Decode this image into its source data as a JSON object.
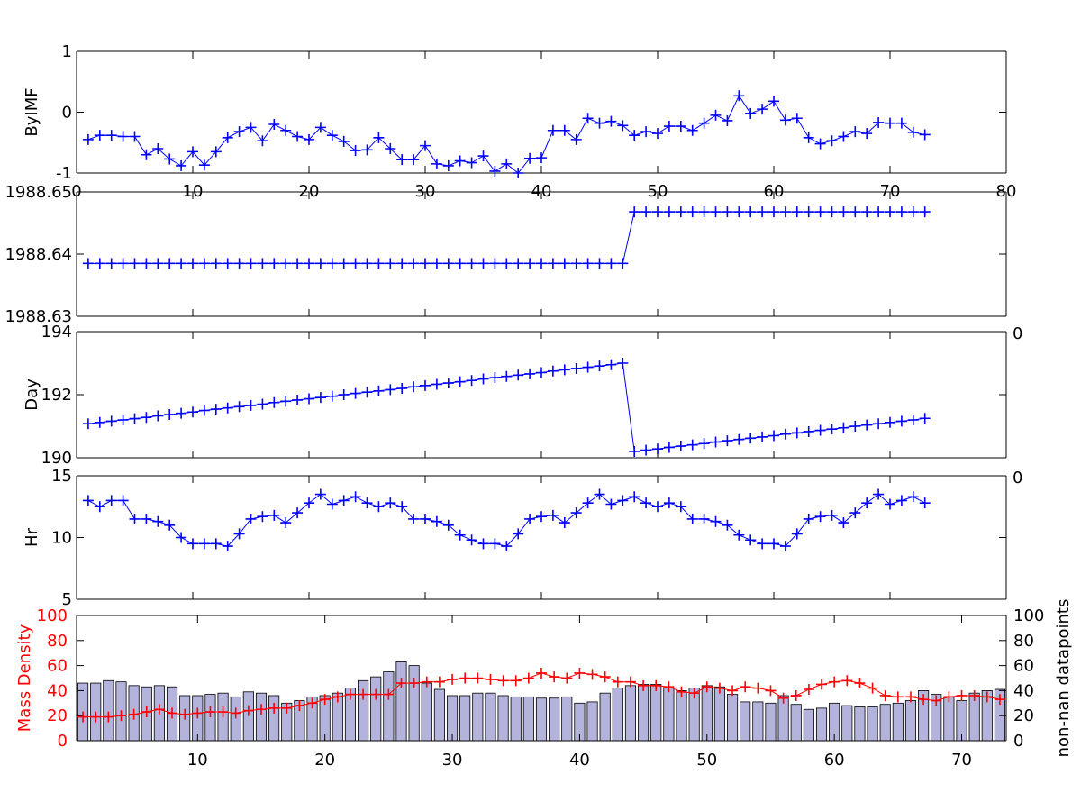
{
  "chart_data": [
    {
      "type": "line",
      "ylabel": "ByIMF",
      "xlim": [
        0,
        80
      ],
      "ylim": [
        -1,
        1
      ],
      "xticks": [
        "0",
        "10",
        "20",
        "30",
        "40",
        "50",
        "60",
        "70",
        "80"
      ],
      "yticks": [
        "-1",
        "0",
        "1"
      ],
      "series": [
        {
          "color": "#0000ff",
          "x": [
            1,
            2,
            3,
            4,
            5,
            6,
            7,
            8,
            9,
            10,
            11,
            12,
            13,
            14,
            15,
            16,
            17,
            18,
            19,
            20,
            21,
            22,
            23,
            24,
            25,
            26,
            27,
            28,
            29,
            30,
            31,
            32,
            33,
            34,
            35,
            36,
            37,
            38,
            39,
            40,
            41,
            42,
            43,
            44,
            45,
            46,
            47,
            48,
            49,
            50,
            51,
            52,
            53,
            54,
            55,
            56,
            57,
            58,
            59,
            60,
            61,
            62,
            63,
            64,
            65,
            66,
            67,
            68,
            69,
            70,
            71,
            72,
            73
          ],
          "values": [
            -0.45,
            -0.38,
            -0.38,
            -0.4,
            -0.4,
            -0.7,
            -0.6,
            -0.77,
            -0.88,
            -0.65,
            -0.87,
            -0.65,
            -0.42,
            -0.32,
            -0.25,
            -0.47,
            -0.2,
            -0.3,
            -0.4,
            -0.45,
            -0.25,
            -0.38,
            -0.48,
            -0.63,
            -0.62,
            -0.42,
            -0.6,
            -0.78,
            -0.78,
            -0.55,
            -0.85,
            -0.88,
            -0.8,
            -0.83,
            -0.72,
            -0.97,
            -0.85,
            -1.0,
            -0.76,
            -0.75,
            -0.3,
            -0.3,
            -0.45,
            -0.1,
            -0.18,
            -0.15,
            -0.22,
            -0.38,
            -0.32,
            -0.35,
            -0.23,
            -0.23,
            -0.3,
            -0.18,
            -0.05,
            -0.14,
            0.27,
            -0.02,
            0.05,
            0.18,
            -0.13,
            -0.1,
            -0.42,
            -0.52,
            -0.47,
            -0.4,
            -0.32,
            -0.35,
            -0.17,
            -0.18,
            -0.18,
            -0.33,
            -0.37
          ]
        }
      ]
    },
    {
      "type": "line",
      "ylabel": "",
      "xlim": [
        0,
        80
      ],
      "ylim": [
        1988.63,
        1988.65
      ],
      "yticks": [
        "1988.63",
        "1988.64",
        "1988.65"
      ],
      "series": [
        {
          "color": "#0000ff",
          "x": [
            1,
            2,
            3,
            4,
            5,
            6,
            7,
            8,
            9,
            10,
            11,
            12,
            13,
            14,
            15,
            16,
            17,
            18,
            19,
            20,
            21,
            22,
            23,
            24,
            25,
            26,
            27,
            28,
            29,
            30,
            31,
            32,
            33,
            34,
            35,
            36,
            37,
            38,
            39,
            40,
            41,
            42,
            43,
            44,
            45,
            46,
            47,
            48,
            49,
            50,
            51,
            52,
            53,
            54,
            55,
            56,
            57,
            58,
            59,
            60,
            61,
            62,
            63,
            64,
            65,
            66,
            67,
            68,
            69,
            70,
            71,
            72,
            73
          ],
          "values": [
            1988.6385,
            1988.6385,
            1988.6385,
            1988.6385,
            1988.6385,
            1988.6385,
            1988.6385,
            1988.6385,
            1988.6385,
            1988.6385,
            1988.6385,
            1988.6385,
            1988.6385,
            1988.6385,
            1988.6385,
            1988.6385,
            1988.6385,
            1988.6385,
            1988.6385,
            1988.6385,
            1988.6385,
            1988.6385,
            1988.6385,
            1988.6385,
            1988.6385,
            1988.6385,
            1988.6385,
            1988.6385,
            1988.6385,
            1988.6385,
            1988.6385,
            1988.6385,
            1988.6385,
            1988.6385,
            1988.6385,
            1988.6385,
            1988.6385,
            1988.6385,
            1988.6385,
            1988.6385,
            1988.6385,
            1988.6385,
            1988.6385,
            1988.6385,
            1988.6385,
            1988.6385,
            1988.6385,
            1988.6468,
            1988.6468,
            1988.6468,
            1988.6468,
            1988.6468,
            1988.6468,
            1988.6468,
            1988.6468,
            1988.6468,
            1988.6468,
            1988.6468,
            1988.6468,
            1988.6468,
            1988.6468,
            1988.6468,
            1988.6468,
            1988.6468,
            1988.6468,
            1988.6468,
            1988.6468,
            1988.6468,
            1988.6468,
            1988.6468,
            1988.6468,
            1988.6468,
            1988.6468
          ]
        }
      ]
    },
    {
      "type": "line",
      "ylabel": "Day",
      "xlim": [
        0,
        80
      ],
      "ylim": [
        190,
        194
      ],
      "yticks": [
        "190",
        "192",
        "194"
      ],
      "right_tick": "0",
      "series": [
        {
          "color": "#0000ff",
          "x": [
            1,
            2,
            3,
            4,
            5,
            6,
            7,
            8,
            9,
            10,
            11,
            12,
            13,
            14,
            15,
            16,
            17,
            18,
            19,
            20,
            21,
            22,
            23,
            24,
            25,
            26,
            27,
            28,
            29,
            30,
            31,
            32,
            33,
            34,
            35,
            36,
            37,
            38,
            39,
            40,
            41,
            42,
            43,
            44,
            45,
            46,
            47,
            48,
            49,
            50,
            51,
            52,
            53,
            54,
            55,
            56,
            57,
            58,
            59,
            60,
            61,
            62,
            63,
            64,
            65,
            66,
            67,
            68,
            69,
            70,
            71,
            72,
            73
          ],
          "values": [
            191.08,
            191.12,
            191.16,
            191.2,
            191.24,
            191.28,
            191.33,
            191.37,
            191.41,
            191.45,
            191.5,
            191.54,
            191.58,
            191.62,
            191.66,
            191.7,
            191.75,
            191.79,
            191.83,
            191.87,
            191.91,
            191.95,
            192.0,
            192.04,
            192.08,
            192.12,
            192.16,
            192.2,
            192.25,
            192.29,
            192.33,
            192.37,
            192.41,
            192.45,
            192.5,
            192.54,
            192.58,
            192.62,
            192.66,
            192.7,
            192.75,
            192.79,
            192.83,
            192.87,
            192.91,
            192.95,
            193.0,
            190.2,
            190.24,
            190.28,
            190.33,
            190.37,
            190.41,
            190.45,
            190.5,
            190.54,
            190.58,
            190.62,
            190.66,
            190.7,
            190.75,
            190.79,
            190.83,
            190.87,
            190.91,
            190.95,
            191.0,
            191.04,
            191.08,
            191.12,
            191.16,
            191.2,
            191.25
          ]
        }
      ]
    },
    {
      "type": "line",
      "ylabel": "Hr",
      "xlim": [
        0,
        80
      ],
      "ylim": [
        5,
        15
      ],
      "yticks": [
        "5",
        "10",
        "15"
      ],
      "right_tick": "0",
      "series": [
        {
          "color": "#0000ff",
          "x": [
            1,
            2,
            3,
            4,
            5,
            6,
            7,
            8,
            9,
            10,
            11,
            12,
            13,
            14,
            15,
            16,
            17,
            18,
            19,
            20,
            21,
            22,
            23,
            24,
            25,
            26,
            27,
            28,
            29,
            30,
            31,
            32,
            33,
            34,
            35,
            36,
            37,
            38,
            39,
            40,
            41,
            42,
            43,
            44,
            45,
            46,
            47,
            48,
            49,
            50,
            51,
            52,
            53,
            54,
            55,
            56,
            57,
            58,
            59,
            60,
            61,
            62,
            63,
            64,
            65,
            66,
            67,
            68,
            69,
            70,
            71,
            72,
            73
          ],
          "values": [
            13,
            12.5,
            13,
            13,
            11.5,
            11.5,
            11.3,
            11,
            10,
            9.5,
            9.5,
            9.5,
            9.3,
            10.3,
            11.5,
            11.7,
            11.8,
            11.2,
            12,
            12.8,
            13.5,
            12.7,
            13,
            13.3,
            12.8,
            12.5,
            12.8,
            12.5,
            11.5,
            11.5,
            11.3,
            11,
            10.2,
            9.8,
            9.5,
            9.5,
            9.3,
            10.3,
            11.5,
            11.7,
            11.8,
            11.2,
            12,
            12.8,
            13.5,
            12.7,
            13,
            13.3,
            12.8,
            12.5,
            12.8,
            12.5,
            11.5,
            11.5,
            11.3,
            11,
            10.2,
            9.8,
            9.5,
            9.5,
            9.3,
            10.3,
            11.5,
            11.7,
            11.8,
            11.2,
            12,
            12.8,
            13.5,
            12.7,
            13,
            13.3,
            12.8
          ]
        }
      ]
    },
    {
      "type": "bar",
      "ylabel": "Mass Density",
      "y2label": "non-nan datapoints",
      "xlim": [
        1,
        73
      ],
      "ylim": [
        0,
        100
      ],
      "xticks": [
        "10",
        "20",
        "30",
        "40",
        "50",
        "60",
        "70"
      ],
      "yticks": [
        "0",
        "20",
        "40",
        "60",
        "80",
        "100"
      ],
      "colors": {
        "line": "#ff0000",
        "bar_fill": "#b3b3dc",
        "bar_edge": "#000000"
      },
      "bars": {
        "name": "non-nan datapoints",
        "x": [
          1,
          2,
          3,
          4,
          5,
          6,
          7,
          8,
          9,
          10,
          11,
          12,
          13,
          14,
          15,
          16,
          17,
          18,
          19,
          20,
          21,
          22,
          23,
          24,
          25,
          26,
          27,
          28,
          29,
          30,
          31,
          32,
          33,
          34,
          35,
          36,
          37,
          38,
          39,
          40,
          41,
          42,
          43,
          44,
          45,
          46,
          47,
          48,
          49,
          50,
          51,
          52,
          53,
          54,
          55,
          56,
          57,
          58,
          59,
          60,
          61,
          62,
          63,
          64,
          65,
          66,
          67,
          68,
          69,
          70,
          71,
          72,
          73
        ],
        "values": [
          46,
          46,
          48,
          47,
          44,
          43,
          44,
          43,
          36,
          36,
          37,
          38,
          35,
          39,
          38,
          36,
          30,
          32,
          35,
          36,
          38,
          42,
          48,
          51,
          55,
          63,
          60,
          46,
          41,
          36,
          36,
          38,
          38,
          36,
          35,
          35,
          34,
          34,
          35,
          30,
          31,
          38,
          42,
          44,
          45,
          45,
          42,
          40,
          42,
          44,
          43,
          37,
          31,
          31,
          30,
          36,
          29,
          25,
          26,
          30,
          28,
          27,
          27,
          29,
          30,
          32,
          40,
          37,
          35,
          32,
          38,
          40,
          41
        ]
      },
      "line": {
        "name": "Mass Density",
        "x": [
          1,
          2,
          3,
          4,
          5,
          6,
          7,
          8,
          9,
          10,
          11,
          12,
          13,
          14,
          15,
          16,
          17,
          18,
          19,
          20,
          21,
          22,
          23,
          24,
          25,
          26,
          27,
          28,
          29,
          30,
          31,
          32,
          33,
          34,
          35,
          36,
          37,
          38,
          39,
          40,
          41,
          42,
          43,
          44,
          45,
          46,
          47,
          48,
          49,
          50,
          51,
          52,
          53,
          54,
          55,
          56,
          57,
          58,
          59,
          60,
          61,
          62,
          63,
          64,
          65,
          66,
          67,
          68,
          69,
          70,
          71,
          72,
          73
        ],
        "values": [
          19,
          19,
          19,
          20,
          21,
          23,
          25,
          22,
          21,
          22,
          23,
          23,
          22,
          24,
          25,
          26,
          26,
          28,
          30,
          33,
          35,
          37,
          37,
          37,
          37,
          46,
          46,
          47,
          47,
          49,
          50,
          50,
          49,
          48,
          48,
          50,
          54,
          51,
          50,
          54,
          53,
          51,
          47,
          47,
          44,
          44,
          43,
          39,
          38,
          43,
          42,
          40,
          43,
          42,
          40,
          34,
          36,
          41,
          45,
          47,
          48,
          46,
          42,
          36,
          35,
          35,
          33,
          32,
          35,
          36,
          36,
          35,
          33
        ]
      }
    }
  ]
}
